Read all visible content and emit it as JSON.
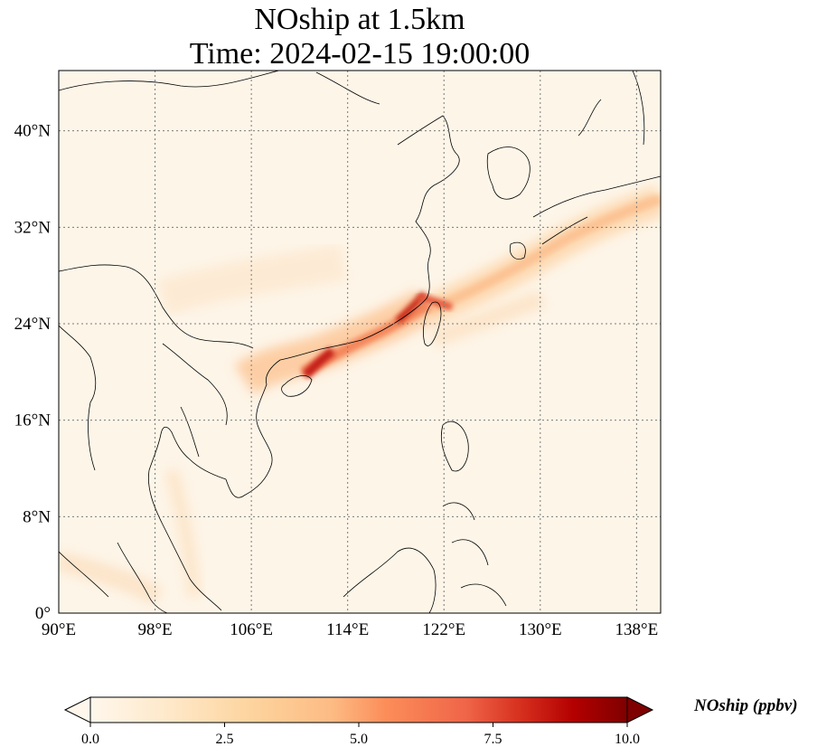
{
  "title": {
    "line1": "NOship at 1.5km",
    "line2": "Time: 2024-02-15 19:00:00"
  },
  "map": {
    "lon_range": [
      90,
      140
    ],
    "lat_range": [
      0,
      45
    ],
    "lon_ticks": [
      {
        "value": 90,
        "label": "90°E"
      },
      {
        "value": 98,
        "label": "98°E"
      },
      {
        "value": 106,
        "label": "106°E"
      },
      {
        "value": 114,
        "label": "114°E"
      },
      {
        "value": 122,
        "label": "122°E"
      },
      {
        "value": 130,
        "label": "130°E"
      },
      {
        "value": 138,
        "label": "138°E"
      }
    ],
    "lat_ticks": [
      {
        "value": 0,
        "label": "0°"
      },
      {
        "value": 8,
        "label": "8°N"
      },
      {
        "value": 16,
        "label": "16°N"
      },
      {
        "value": 24,
        "label": "24°N"
      },
      {
        "value": 32,
        "label": "32°N"
      },
      {
        "value": 40,
        "label": "40°N"
      }
    ],
    "gridlines": true,
    "colormap": "OrRd",
    "colors": {
      "background": "#fdf5e8",
      "low": "#fff7ec",
      "mid": "#fdbb84",
      "high": "#d7301f",
      "max": "#7f0000",
      "coast": "#000000",
      "grid": "#7a7a7a"
    },
    "plumes": [
      {
        "from": [
          110.5,
          19.8
        ],
        "to": [
          121.0,
          25.2
        ],
        "peak": 10.0,
        "description_lonlat": true
      },
      {
        "from": [
          121.0,
          25.2
        ],
        "to": [
          138.0,
          34.5
        ],
        "peak": 4.0
      },
      {
        "from": [
          108.0,
          21.5
        ],
        "to": [
          111.0,
          20.0
        ],
        "peak": 3.5
      },
      {
        "from": [
          118.0,
          24.5
        ],
        "to": [
          120.5,
          27.0
        ],
        "peak": 6.0
      }
    ]
  },
  "colorbar": {
    "vmin": 0,
    "vmax": 10,
    "extend": "both",
    "ticks": [
      {
        "value": 0,
        "label": "0.0"
      },
      {
        "value": 2.5,
        "label": "2.5"
      },
      {
        "value": 5,
        "label": "5.0"
      },
      {
        "value": 7.5,
        "label": "7.5"
      },
      {
        "value": 10,
        "label": "10.0"
      }
    ],
    "label": "NOship (ppbv)"
  }
}
